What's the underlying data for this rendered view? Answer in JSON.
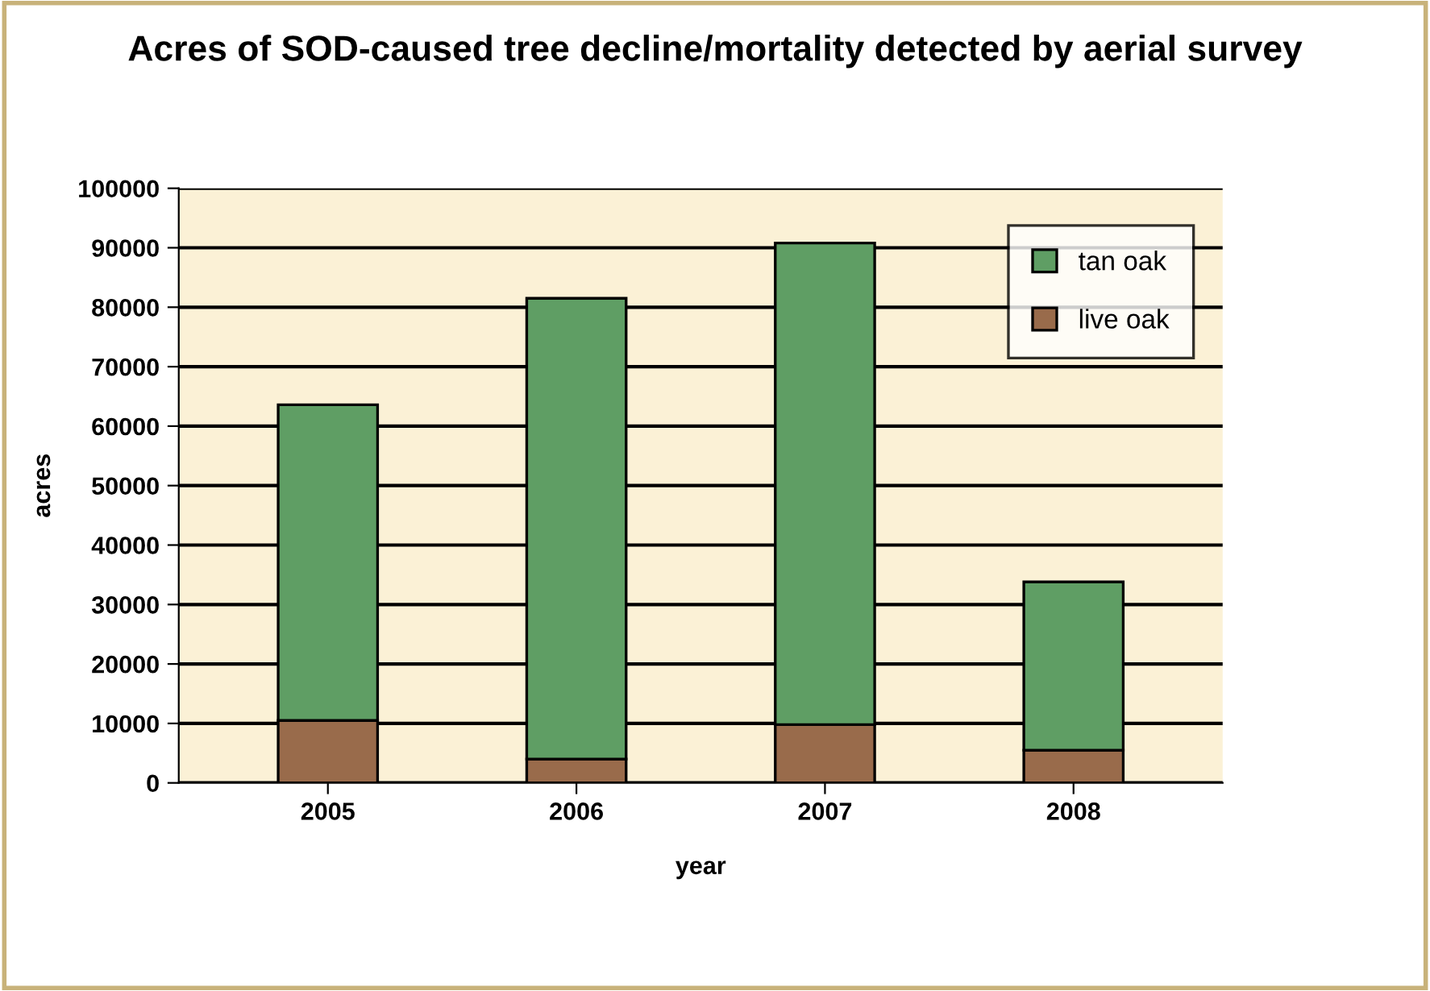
{
  "chart_data": {
    "type": "bar",
    "title": "Acres of SOD-caused tree decline/mortality detected by aerial survey",
    "xlabel": "year",
    "ylabel": "acres",
    "categories": [
      "2005",
      "2006",
      "2007",
      "2008"
    ],
    "stacked": true,
    "series": [
      {
        "name": "live oak",
        "color": "#996b4b",
        "values": [
          10500,
          4000,
          9800,
          5500
        ]
      },
      {
        "name": "tan oak",
        "color": "#5f9e64",
        "values": [
          53100,
          77500,
          81000,
          28300
        ]
      }
    ],
    "ylim": [
      0,
      100000
    ],
    "yticks": [
      0,
      10000,
      20000,
      30000,
      40000,
      50000,
      60000,
      70000,
      80000,
      90000,
      100000
    ],
    "grid": "y",
    "legend": "top right"
  }
}
